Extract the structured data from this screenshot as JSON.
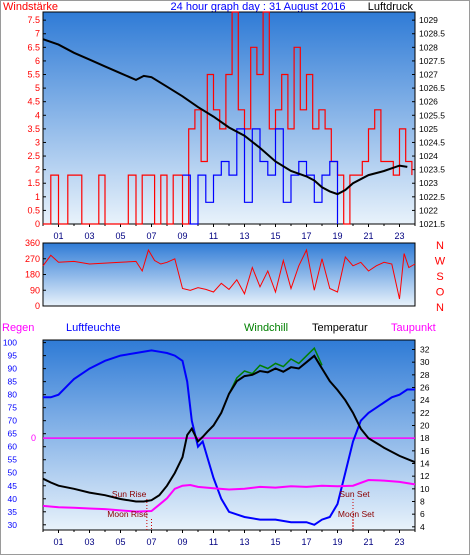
{
  "chart_data": [
    {
      "type": "line",
      "title": "24 hour graph day : 31 August 2016",
      "left_label": "Windstärke",
      "right_label": "Luftdruck",
      "y_left_ticks": [
        "0",
        "0.5",
        "1",
        "1.5",
        "2",
        "2.5",
        "3",
        "3.5",
        "4",
        "4.5",
        "5",
        "5.5",
        "6",
        "6.5",
        "7",
        "7.5"
      ],
      "y_left_range": [
        0,
        7.8
      ],
      "y_right_ticks": [
        "1021.5",
        "1022",
        "1022.5",
        "1023",
        "1023.5",
        "1024",
        "1024.5",
        "1025",
        "1025.5",
        "1026",
        "1026.5",
        "1027",
        "1027.5",
        "1028",
        "1028.5",
        "1029"
      ],
      "y_right_range": [
        1021.5,
        1029.3
      ],
      "x_ticks": [
        "01",
        "03",
        "05",
        "07",
        "09",
        "11",
        "13",
        "15",
        "17",
        "19",
        "21",
        "23"
      ],
      "x_range_hours": [
        0,
        24
      ],
      "series": [
        {
          "name": "Luftdruck",
          "color": "#000000",
          "x": [
            0,
            1,
            2,
            3,
            4,
            5,
            6,
            6.5,
            7,
            8,
            9,
            10,
            11,
            12,
            13,
            14,
            15,
            16,
            17,
            17.5,
            18,
            18.5,
            19,
            19.5,
            20,
            21,
            22,
            23,
            23.5
          ],
          "y": [
            1028.3,
            1028.1,
            1027.8,
            1027.55,
            1027.3,
            1027.05,
            1026.8,
            1026.95,
            1026.9,
            1026.55,
            1026.2,
            1025.8,
            1025.45,
            1025.05,
            1024.75,
            1024.3,
            1023.8,
            1023.45,
            1023.25,
            1023.1,
            1022.85,
            1022.7,
            1022.6,
            1022.75,
            1023.0,
            1023.3,
            1023.45,
            1023.65,
            1023.6
          ]
        },
        {
          "name": "Wind gust",
          "color": "#ff0000",
          "x": [
            0,
            0.5,
            1,
            1.6,
            2,
            2.5,
            3,
            3.6,
            4,
            4.5,
            5,
            5.5,
            6,
            6.4,
            6.8,
            7.2,
            7.6,
            8,
            8.4,
            8.8,
            9,
            9.4,
            9.8,
            10.2,
            10.6,
            11,
            11.4,
            11.8,
            12.2,
            12.6,
            13,
            13.4,
            13.8,
            14.2,
            14.6,
            15,
            15.4,
            15.8,
            16.2,
            16.6,
            17,
            17.4,
            17.8,
            18.2,
            18.6,
            19,
            19.4,
            19.8,
            20.2,
            20.6,
            21,
            21.4,
            21.8,
            22.2,
            22.6,
            23,
            23.4,
            23.8
          ],
          "y": [
            0,
            1.8,
            0,
            1.8,
            1.8,
            0,
            0,
            1.8,
            0,
            0,
            0,
            1.8,
            0,
            1.8,
            1.8,
            0,
            1.8,
            0,
            1.8,
            1.8,
            0,
            3.5,
            4.2,
            2.3,
            5.5,
            4.2,
            3.5,
            5.5,
            7.8,
            4.2,
            3.5,
            6.5,
            5.5,
            7.8,
            3.5,
            4.2,
            5.5,
            3.5,
            6.5,
            4.2,
            5.5,
            3.5,
            4.2,
            3.5,
            2.3,
            1.8,
            0,
            1.8,
            1.8,
            2.3,
            3.5,
            4.2,
            2.3,
            2.3,
            1.8,
            3.5,
            2.3,
            1.8
          ]
        },
        {
          "name": "Wind speed",
          "color": "#0000ff",
          "x": [
            9,
            9.5,
            10,
            10.5,
            11,
            11.5,
            12,
            12.5,
            13,
            13.5,
            14,
            14.5,
            15,
            15.5,
            16,
            16.5,
            17,
            17.5,
            18,
            18.5,
            19
          ],
          "y": [
            1.8,
            0,
            1.8,
            0.8,
            1.8,
            2.3,
            1.8,
            3.5,
            0.8,
            3.5,
            2.3,
            1.8,
            3.5,
            0.8,
            1.8,
            2.3,
            1.8,
            0.8,
            1.8,
            2.3,
            0
          ]
        }
      ]
    },
    {
      "type": "line",
      "title": "",
      "y_left_ticks": [
        "0",
        "90",
        "180",
        "270",
        "360"
      ],
      "y_left_range": [
        0,
        360
      ],
      "compass_labels": [
        "N",
        "W",
        "S",
        "O",
        "N"
      ],
      "series": [
        {
          "name": "Windrichtung",
          "color": "#ff0000",
          "x": [
            0,
            0.5,
            1,
            2,
            3,
            4,
            5,
            6,
            6.4,
            6.8,
            7.2,
            7.6,
            8,
            8.5,
            9,
            9.5,
            10,
            10.5,
            11,
            11.5,
            12,
            12.5,
            13,
            13.5,
            14,
            14.5,
            15,
            15.5,
            16,
            16.5,
            17,
            17.5,
            18,
            18.5,
            19,
            19.5,
            20,
            20.5,
            21,
            21.5,
            22,
            22.5,
            23,
            23.3,
            23.6,
            24
          ],
          "y": [
            230,
            290,
            250,
            255,
            240,
            245,
            250,
            255,
            200,
            320,
            260,
            240,
            250,
            270,
            100,
            90,
            105,
            95,
            80,
            130,
            95,
            150,
            70,
            220,
            110,
            200,
            80,
            260,
            100,
            230,
            320,
            90,
            270,
            100,
            80,
            280,
            230,
            250,
            200,
            230,
            250,
            240,
            40,
            300,
            220,
            240
          ]
        }
      ]
    },
    {
      "type": "line",
      "title": "",
      "legend": [
        "Regen",
        "Luftfeuchte",
        "Windchill",
        "Temperatur",
        "Taupunkt"
      ],
      "y_left_ticks": [
        "30",
        "35",
        "40",
        "45",
        "50",
        "55",
        "60",
        "65",
        "70",
        "75",
        "80",
        "85",
        "90",
        "95",
        "100"
      ],
      "y_left_range": [
        28,
        101
      ],
      "y_right_ticks": [
        "4",
        "6",
        "8",
        "10",
        "12",
        "14",
        "16",
        "18",
        "20",
        "22",
        "24",
        "26",
        "28",
        "30",
        "32"
      ],
      "y_right_range": [
        3.5,
        33.5
      ],
      "rain_axis_ticks": [
        "0"
      ],
      "x_ticks": [
        "01",
        "03",
        "05",
        "07",
        "09",
        "11",
        "13",
        "15",
        "17",
        "19",
        "21",
        "23"
      ],
      "annotations": [
        "Sun Rise",
        "Moon Rise",
        "Sun Set",
        "Moon Set"
      ],
      "series": [
        {
          "name": "Luftfeuchte",
          "color": "#0000ff",
          "x": [
            0,
            0.5,
            1,
            1.5,
            2,
            3,
            4,
            5,
            6,
            7,
            7.5,
            8,
            8.5,
            9,
            9.3,
            9.6,
            10,
            10.3,
            10.6,
            11,
            11.5,
            12,
            12.5,
            13,
            14,
            15,
            16,
            17,
            17.5,
            18,
            18.5,
            19,
            19.5,
            20,
            20.5,
            21,
            21.5,
            22,
            22.5,
            23,
            23.5,
            24
          ],
          "y": [
            79,
            79,
            80,
            83,
            86,
            90,
            93,
            95,
            96,
            97,
            96.5,
            96,
            95,
            93,
            85,
            70,
            60,
            62,
            56,
            48,
            40,
            35,
            34,
            33,
            32,
            32,
            31,
            31,
            30,
            32,
            33,
            38,
            50,
            62,
            70,
            73,
            75,
            77,
            79,
            80,
            82,
            82
          ]
        },
        {
          "name": "Temperatur",
          "color": "#000000",
          "x": [
            0,
            0.5,
            1,
            2,
            3,
            4,
            5,
            6,
            6.5,
            7,
            7.5,
            8,
            8.5,
            9,
            9.3,
            9.6,
            10,
            10.3,
            10.6,
            11,
            11.5,
            12,
            12.5,
            13,
            13.5,
            14,
            14.5,
            15,
            15.5,
            16,
            16.5,
            17,
            17.5,
            18,
            18.5,
            19,
            19.5,
            20,
            20.5,
            21,
            22,
            23,
            24
          ],
          "y": [
            11.6,
            11,
            10.5,
            10,
            9.4,
            9,
            8.4,
            8,
            8,
            8.2,
            9,
            10.5,
            12.5,
            15,
            18.5,
            19.5,
            17.5,
            18.2,
            19,
            20,
            22,
            25,
            27,
            27.8,
            28,
            28.6,
            28.4,
            29,
            28.5,
            29.2,
            29,
            30,
            31,
            29,
            27,
            25.6,
            24,
            22,
            19.5,
            18,
            16.5,
            15.2,
            14.2
          ]
        },
        {
          "name": "Windchill",
          "color": "#008000",
          "x": [
            12,
            12.5,
            13,
            13.5,
            14,
            14.5,
            15,
            15.5,
            16,
            16.5,
            17,
            17.5,
            18
          ],
          "y": [
            25,
            27.5,
            28.6,
            28.2,
            29.5,
            29,
            29.8,
            29.3,
            30.5,
            29.8,
            31,
            32.2,
            29.5
          ]
        },
        {
          "name": "Taupunkt",
          "color": "#ff00ff",
          "x": [
            0,
            1,
            2,
            3,
            4,
            5,
            6,
            7,
            7.5,
            8,
            8.5,
            9,
            9.5,
            10,
            11,
            12,
            13,
            14,
            15,
            16,
            17,
            18,
            19,
            20,
            21,
            22,
            23,
            24
          ],
          "y": [
            7.3,
            7.1,
            7,
            6.9,
            6.8,
            6.6,
            6.4,
            6.5,
            7.5,
            8.5,
            10,
            10.5,
            10.6,
            10.3,
            10.1,
            9.9,
            10,
            10.3,
            10.2,
            10.4,
            10.3,
            10.5,
            10.4,
            10.5,
            11.4,
            11.3,
            11.1,
            10.7
          ]
        }
      ]
    }
  ]
}
